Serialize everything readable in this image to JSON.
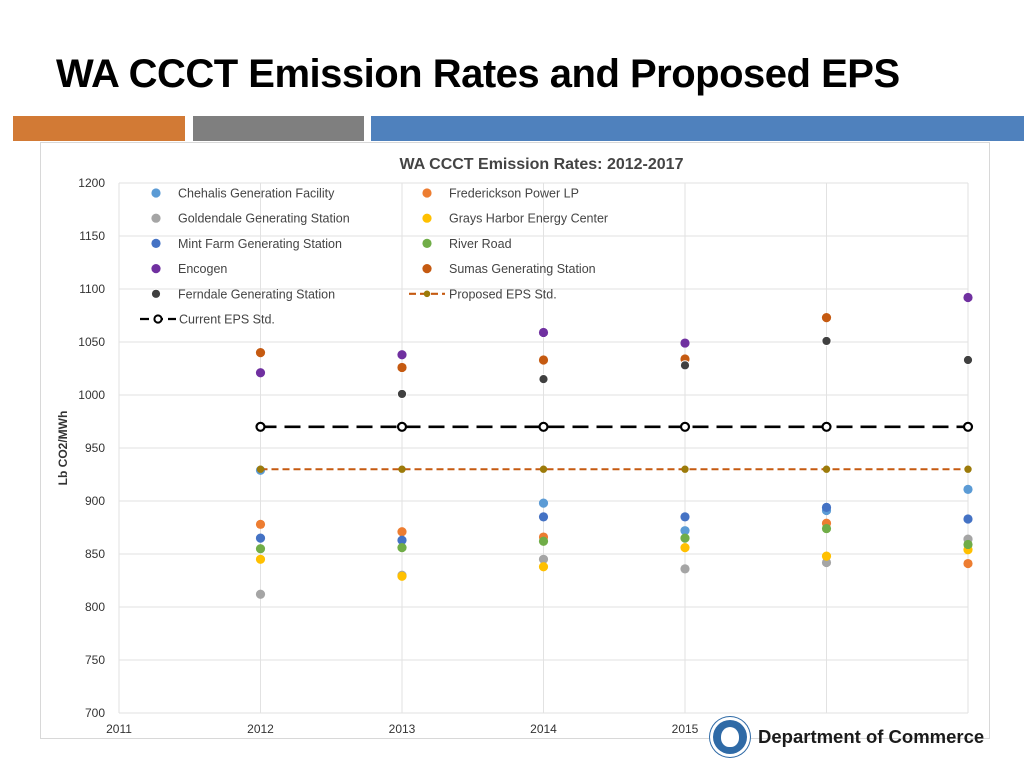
{
  "slide": {
    "title": "WA CCCT Emission Rates and Proposed EPS",
    "bands": [
      {
        "name": "orange",
        "color": "#d27a35"
      },
      {
        "name": "gray",
        "color": "#7f7f7f"
      },
      {
        "name": "blue",
        "color": "#4f81bd"
      }
    ],
    "footer": {
      "department": "Department of Commerce"
    }
  },
  "chart_data": {
    "type": "scatter",
    "title": "WA CCCT Emission Rates: 2012-2017",
    "xlabel": "",
    "ylabel": "Lb CO2/MWh",
    "xlim": [
      2011,
      2017
    ],
    "ylim": [
      700,
      1200
    ],
    "x_ticks": [
      2011,
      2012,
      2013,
      2014,
      2015
    ],
    "y_ticks": [
      700,
      750,
      800,
      850,
      900,
      950,
      1000,
      1050,
      1100,
      1150,
      1200
    ],
    "grid": true,
    "legend_position": "top",
    "series": [
      {
        "name": "Chehalis Generation Facility",
        "kind": "scatter",
        "color": "#5b9bd5",
        "points": [
          [
            2012,
            929
          ],
          [
            2014,
            898
          ],
          [
            2015,
            872
          ],
          [
            2016,
            891
          ],
          [
            2017,
            911
          ]
        ]
      },
      {
        "name": "Frederickson Power LP",
        "kind": "scatter",
        "color": "#ed7d31",
        "points": [
          [
            2012,
            878
          ],
          [
            2013,
            871
          ],
          [
            2014,
            866
          ],
          [
            2016,
            879
          ],
          [
            2017,
            841
          ]
        ]
      },
      {
        "name": "Goldendale Generating Station",
        "kind": "scatter",
        "color": "#a5a5a5",
        "points": [
          [
            2012,
            812
          ],
          [
            2013,
            830
          ],
          [
            2014,
            845
          ],
          [
            2015,
            836
          ],
          [
            2016,
            842
          ],
          [
            2017,
            864
          ]
        ]
      },
      {
        "name": "Grays Harbor Energy Center",
        "kind": "scatter",
        "color": "#ffc000",
        "points": [
          [
            2012,
            845
          ],
          [
            2013,
            829
          ],
          [
            2014,
            838
          ],
          [
            2015,
            856
          ],
          [
            2016,
            848
          ],
          [
            2017,
            854
          ]
        ]
      },
      {
        "name": "Mint Farm Generating Station",
        "kind": "scatter",
        "color": "#4472c4",
        "points": [
          [
            2012,
            865
          ],
          [
            2013,
            863
          ],
          [
            2014,
            885
          ],
          [
            2015,
            885
          ],
          [
            2016,
            894
          ],
          [
            2017,
            883
          ]
        ]
      },
      {
        "name": "River Road",
        "kind": "scatter",
        "color": "#70ad47",
        "points": [
          [
            2012,
            855
          ],
          [
            2013,
            856
          ],
          [
            2014,
            862
          ],
          [
            2015,
            865
          ],
          [
            2016,
            874
          ],
          [
            2017,
            859
          ]
        ]
      },
      {
        "name": "Encogen",
        "kind": "scatter",
        "color": "#7030a0",
        "points": [
          [
            2012,
            1021
          ],
          [
            2013,
            1038
          ],
          [
            2014,
            1059
          ],
          [
            2015,
            1049
          ],
          [
            2017,
            1092
          ]
        ]
      },
      {
        "name": "Sumas Generating Station",
        "kind": "scatter",
        "color": "#c55a11",
        "points": [
          [
            2012,
            1040
          ],
          [
            2013,
            1026
          ],
          [
            2014,
            1033
          ],
          [
            2015,
            1034
          ],
          [
            2016,
            1073
          ]
        ]
      },
      {
        "name": "Ferndale Generating Station",
        "kind": "scatter",
        "color": "#404040",
        "points": [
          [
            2013,
            1001
          ],
          [
            2014,
            1015
          ],
          [
            2015,
            1028
          ],
          [
            2016,
            1051
          ],
          [
            2017,
            1033
          ]
        ]
      },
      {
        "name": "Proposed EPS Std.",
        "kind": "line",
        "dash": "dash",
        "color": "#c55a11",
        "marker_color": "#9c7b0a",
        "points": [
          [
            2012,
            930
          ],
          [
            2013,
            930
          ],
          [
            2014,
            930
          ],
          [
            2015,
            930
          ],
          [
            2016,
            930
          ],
          [
            2017,
            930
          ]
        ]
      },
      {
        "name": "Current EPS Std.",
        "kind": "line",
        "dash": "longdash",
        "color": "#000000",
        "marker_color": "#000000",
        "points": [
          [
            2012,
            970
          ],
          [
            2013,
            970
          ],
          [
            2014,
            970
          ],
          [
            2015,
            970
          ],
          [
            2016,
            970
          ],
          [
            2017,
            970
          ]
        ]
      }
    ]
  }
}
